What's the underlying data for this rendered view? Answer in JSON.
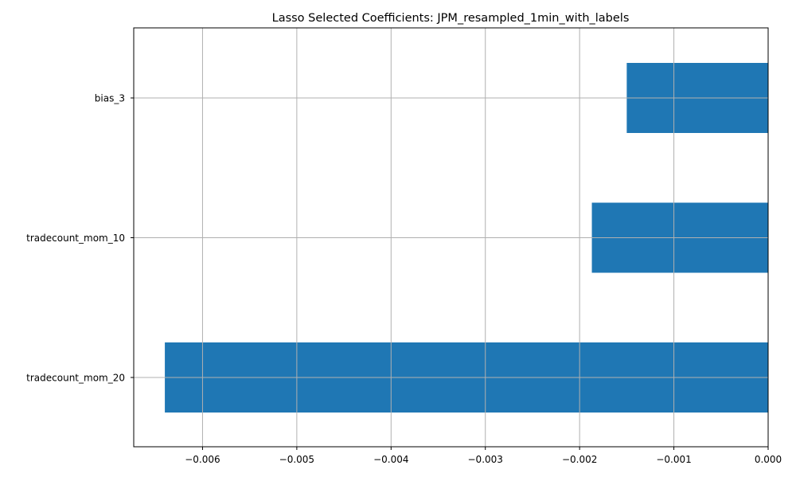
{
  "chart_data": {
    "type": "bar",
    "orientation": "horizontal",
    "title": "Lasso Selected Coefficients: JPM_resampled_1min_with_labels",
    "xlabel": "",
    "ylabel": "",
    "categories": [
      "bias_3",
      "tradecount_mom_10",
      "tradecount_mom_20"
    ],
    "values": [
      -0.0015,
      -0.00187,
      -0.0064
    ],
    "xlim": [
      -0.00673,
      0.0
    ],
    "xticks": [
      -0.006,
      -0.005,
      -0.004,
      -0.003,
      -0.002,
      -0.001,
      0.0
    ],
    "xtick_labels": [
      "−0.006",
      "−0.005",
      "−0.004",
      "−0.003",
      "−0.002",
      "−0.001",
      "0.000"
    ],
    "grid": true,
    "legend": "none",
    "bar_color": "#1f77b4",
    "grid_color": "#b0b0b0"
  }
}
